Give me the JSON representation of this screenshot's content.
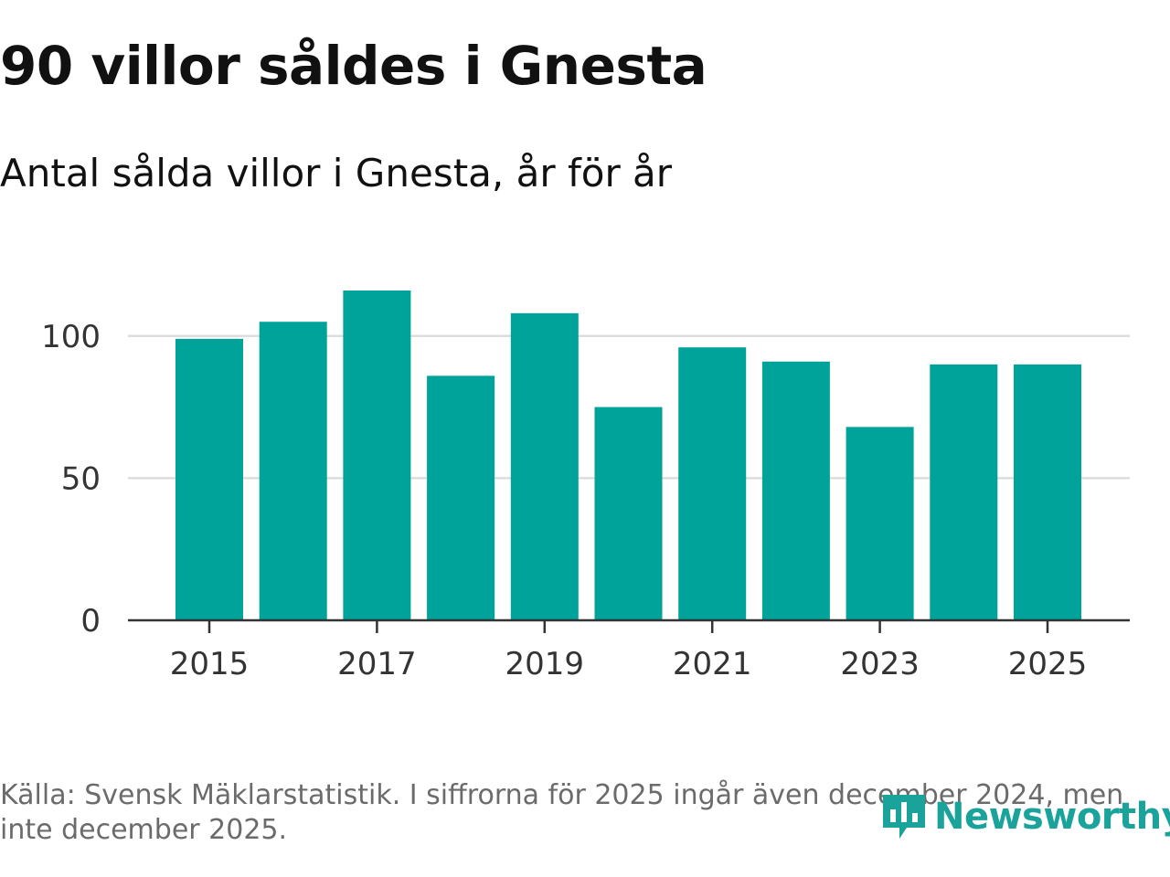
{
  "header": {
    "title": "90 villor såldes i Gnesta",
    "subtitle": "Antal sålda villor i Gnesta, år för år"
  },
  "chart_data": {
    "type": "bar",
    "title": "90 villor såldes i Gnesta",
    "subtitle": "Antal sålda villor i Gnesta, år för år",
    "categories": [
      "2015",
      "2016",
      "2017",
      "2018",
      "2019",
      "2020",
      "2021",
      "2022",
      "2023",
      "2024",
      "2025"
    ],
    "values": [
      99,
      105,
      116,
      86,
      108,
      75,
      96,
      91,
      68,
      90,
      90
    ],
    "xlabel": "",
    "ylabel": "",
    "ylim": [
      0,
      116
    ],
    "yticks": [
      0,
      50,
      100
    ],
    "ytick_labels": [
      "0",
      "50",
      "100"
    ],
    "xtick_labels": [
      "2015",
      "2017",
      "2019",
      "2021",
      "2023",
      "2025"
    ],
    "grid": true,
    "bar_color": "#00a39a"
  },
  "footer": {
    "source": "Källa: Svensk Mäklarstatistik. I siffrorna för 2025 ingår även december 2024, men inte december 2025.",
    "logo_text": "Newsworthy",
    "logo_icon": "newsworthy-chart-icon"
  }
}
